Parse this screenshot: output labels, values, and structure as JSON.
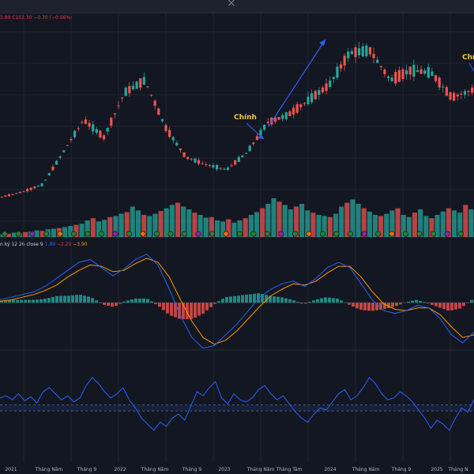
{
  "window": {
    "close_glyph": "×"
  },
  "legend": {
    "price_values": "3.80 C151.30 −0.70 (−0.56%)",
    "macd_name": "n ký",
    "macd_params": "12 26 close 9",
    "macd_v1": "1.89",
    "macd_v2": "−2.29",
    "macd_v3": "−3.90"
  },
  "annotations": [
    {
      "text": "Chính"
    },
    {
      "text": "Chín"
    }
  ],
  "colors": {
    "up": "#26a69a",
    "down": "#ef5350",
    "macd": "#2962ff",
    "signal": "#ff9800",
    "hist_up": "#26a69a",
    "hist_down": "#ef5350",
    "rsi": "#2962ff",
    "background": "#131722",
    "arrow": "#2962ff",
    "annotation": "#f5c542"
  },
  "chart_data": [
    {
      "type": "candlestick",
      "title": "",
      "y_scale_note": "no price axis visible; values in relative price units",
      "price_path": [
        {
          "x": "2021-01",
          "close": 10
        },
        {
          "x": "2021-05",
          "close": 12
        },
        {
          "x": "2021-08",
          "close": 15
        },
        {
          "x": "2021-11",
          "close": 28
        },
        {
          "x": "2022-01",
          "close": 41
        },
        {
          "x": "2022-02",
          "close": 34
        },
        {
          "x": "2022-04",
          "close": 52
        },
        {
          "x": "2022-06",
          "close": 57
        },
        {
          "x": "2022-08",
          "close": 38
        },
        {
          "x": "2022-10",
          "close": 26
        },
        {
          "x": "2022-12",
          "close": 23
        },
        {
          "x": "2023-02",
          "close": 21
        },
        {
          "x": "2023-04",
          "close": 28
        },
        {
          "x": "2023-06",
          "close": 40
        },
        {
          "x": "2023-08",
          "close": 43
        },
        {
          "x": "2023-11",
          "close": 49
        },
        {
          "x": "2024-01",
          "close": 55
        },
        {
          "x": "2024-03",
          "close": 68
        },
        {
          "x": "2024-05",
          "close": 69
        },
        {
          "x": "2024-07",
          "close": 57
        },
        {
          "x": "2024-09",
          "close": 61
        },
        {
          "x": "2024-12",
          "close": 60
        },
        {
          "x": "2025-02",
          "close": 50
        },
        {
          "x": "2025-03",
          "close": 53
        }
      ]
    },
    {
      "type": "bar",
      "title": "Volume",
      "values_note": "relative volume, 0-100",
      "values": [
        5,
        6,
        8,
        7,
        9,
        10,
        12,
        11,
        14,
        15,
        16,
        18,
        20,
        22,
        24,
        30,
        34,
        28,
        31,
        36,
        38,
        42,
        45,
        55,
        48,
        40,
        38,
        42,
        47,
        52,
        58,
        62,
        55,
        50,
        44,
        40,
        35,
        36,
        30,
        28,
        32,
        26,
        30,
        34,
        40,
        45,
        52,
        60,
        70,
        64,
        58,
        50,
        55,
        60,
        48,
        44,
        40,
        38,
        36,
        42,
        55,
        62,
        68,
        60,
        52,
        46,
        40,
        38,
        42,
        48,
        52,
        40,
        36,
        44,
        50,
        38,
        34,
        40,
        46,
        52,
        48,
        44,
        58,
        50
      ]
    },
    {
      "type": "line",
      "title": "MACD",
      "params": "12 26 close 9",
      "series": [
        {
          "name": "MACD",
          "values": [
            0.2,
            0.4,
            0.6,
            0.8,
            1.2,
            1.8,
            2.4,
            3.0,
            3.2,
            2.6,
            2.0,
            2.5,
            3.2,
            3.6,
            2.8,
            1.0,
            -1.0,
            -2.6,
            -3.4,
            -3.2,
            -2.4,
            -1.6,
            -0.6,
            0.4,
            1.0,
            1.4,
            1.6,
            1.2,
            1.8,
            2.6,
            3.0,
            2.6,
            1.4,
            0.2,
            -0.6,
            -0.8,
            -0.6,
            -0.2,
            -0.4,
            -1.2,
            -2.4,
            -3.0,
            -2.2
          ]
        },
        {
          "name": "Signal",
          "values": [
            0.1,
            0.2,
            0.4,
            0.6,
            0.9,
            1.3,
            1.9,
            2.4,
            2.8,
            2.7,
            2.3,
            2.4,
            2.9,
            3.3,
            3.0,
            1.9,
            0.2,
            -1.4,
            -2.6,
            -3.1,
            -2.8,
            -2.1,
            -1.2,
            -0.3,
            0.5,
            1.0,
            1.4,
            1.3,
            1.6,
            2.2,
            2.7,
            2.7,
            1.9,
            0.8,
            -0.1,
            -0.5,
            -0.6,
            -0.4,
            -0.4,
            -0.9,
            -1.8,
            -2.6,
            -2.4
          ]
        }
      ]
    },
    {
      "type": "line",
      "title": "RSI",
      "bands": [
        30,
        70
      ],
      "ylim": [
        0,
        100
      ],
      "values": [
        60,
        62,
        58,
        64,
        57,
        61,
        55,
        66,
        70,
        64,
        58,
        62,
        56,
        60,
        72,
        80,
        74,
        66,
        60,
        64,
        70,
        58,
        50,
        40,
        34,
        28,
        36,
        32,
        40,
        44,
        38,
        52,
        66,
        62,
        70,
        76,
        60,
        54,
        64,
        58,
        56,
        60,
        68,
        72,
        64,
        58,
        62,
        54,
        46,
        40,
        36,
        44,
        50,
        48,
        56,
        64,
        68,
        58,
        62,
        70,
        80,
        74,
        64,
        58,
        60,
        66,
        62,
        56,
        48,
        40,
        30,
        38,
        34,
        28,
        40,
        50,
        46,
        58
      ]
    },
    {
      "type": "axis",
      "x_tick_labels": [
        "2021",
        "Tháng Năm",
        "Tháng 9",
        "2022",
        "Tháng Năm",
        "Tháng 9",
        "2023",
        "Tháng Năm",
        "Tháng Tám",
        "2024",
        "Tháng Năm",
        "Tháng 9",
        "2025",
        "Tháng N"
      ]
    }
  ]
}
